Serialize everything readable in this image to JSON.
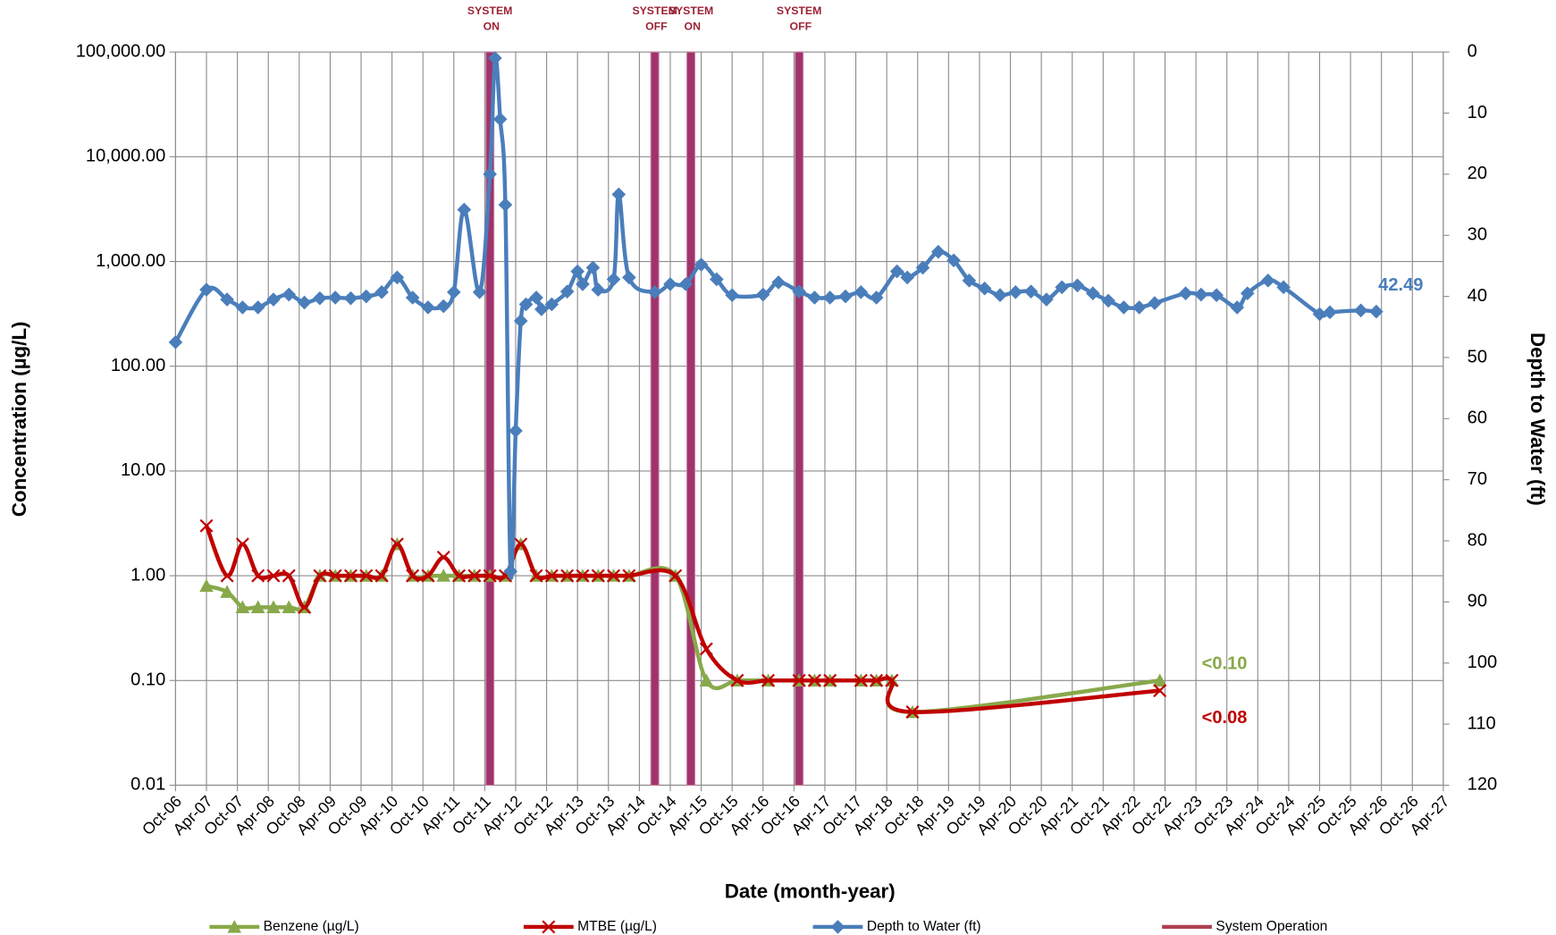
{
  "chart_data": {
    "type": "line",
    "xlabel": "Date (month-year)",
    "ylabel": "Concentration (µg/L)",
    "y2label": "Depth to Water (ft)",
    "log_y": true,
    "grid": true,
    "xlim": [
      "2006-10",
      "2027-04"
    ],
    "xticks": [
      {
        "value": "2006-10",
        "label": "Oct-06"
      },
      {
        "value": "2007-04",
        "label": "Apr-07"
      },
      {
        "value": "2007-10",
        "label": "Oct-07"
      },
      {
        "value": "2008-04",
        "label": "Apr-08"
      },
      {
        "value": "2008-10",
        "label": "Oct-08"
      },
      {
        "value": "2009-04",
        "label": "Apr-09"
      },
      {
        "value": "2009-10",
        "label": "Oct-09"
      },
      {
        "value": "2010-04",
        "label": "Apr-10"
      },
      {
        "value": "2010-10",
        "label": "Oct-10"
      },
      {
        "value": "2011-04",
        "label": "Apr-11"
      },
      {
        "value": "2011-10",
        "label": "Oct-11"
      },
      {
        "value": "2012-04",
        "label": "Apr-12"
      },
      {
        "value": "2012-10",
        "label": "Oct-12"
      },
      {
        "value": "2013-04",
        "label": "Apr-13"
      },
      {
        "value": "2013-10",
        "label": "Oct-13"
      },
      {
        "value": "2014-04",
        "label": "Apr-14"
      },
      {
        "value": "2014-10",
        "label": "Oct-14"
      },
      {
        "value": "2015-04",
        "label": "Apr-15"
      },
      {
        "value": "2015-10",
        "label": "Oct-15"
      },
      {
        "value": "2016-04",
        "label": "Apr-16"
      },
      {
        "value": "2016-10",
        "label": "Oct-16"
      },
      {
        "value": "2017-04",
        "label": "Apr-17"
      },
      {
        "value": "2017-10",
        "label": "Oct-17"
      },
      {
        "value": "2018-04",
        "label": "Apr-18"
      },
      {
        "value": "2018-10",
        "label": "Oct-18"
      },
      {
        "value": "2019-04",
        "label": "Apr-19"
      },
      {
        "value": "2019-10",
        "label": "Oct-19"
      },
      {
        "value": "2020-04",
        "label": "Apr-20"
      },
      {
        "value": "2020-10",
        "label": "Oct-20"
      },
      {
        "value": "2021-04",
        "label": "Apr-21"
      },
      {
        "value": "2021-10",
        "label": "Oct-21"
      },
      {
        "value": "2022-04",
        "label": "Apr-22"
      },
      {
        "value": "2022-10",
        "label": "Oct-22"
      },
      {
        "value": "2023-04",
        "label": "Apr-23"
      },
      {
        "value": "2023-10",
        "label": "Oct-23"
      },
      {
        "value": "2024-04",
        "label": "Apr-24"
      },
      {
        "value": "2024-10",
        "label": "Oct-24"
      },
      {
        "value": "2025-04",
        "label": "Apr-25"
      },
      {
        "value": "2025-10",
        "label": "Oct-25"
      },
      {
        "value": "2026-04",
        "label": "Apr-26"
      },
      {
        "value": "2026-10",
        "label": "Oct-26"
      },
      {
        "value": "2027-04",
        "label": "Apr-27"
      }
    ],
    "ylim": [
      0.01,
      100000
    ],
    "yticks": [
      0.01,
      {
        "value": 0.1,
        "label": "0.10"
      },
      {
        "value": 1,
        "label": "1.00"
      },
      {
        "value": 10,
        "label": "10.00"
      },
      {
        "value": 100,
        "label": "100.00"
      },
      {
        "value": 1000,
        "label": "1,000.00"
      },
      {
        "value": 10000,
        "label": "10,000.00"
      },
      {
        "value": 100000,
        "label": "100,000.00"
      }
    ],
    "y2lim": [
      120,
      0
    ],
    "y2ticks": [
      0,
      10,
      20,
      30,
      40,
      50,
      60,
      70,
      80,
      90,
      100,
      110,
      120
    ],
    "series": [
      {
        "name": "Benzene (µg/L)",
        "color": "#88a94a",
        "marker": "triangle",
        "x": [
          "2007-04",
          "2007-08",
          "2007-11",
          "2008-02",
          "2008-05",
          "2008-08",
          "2008-11",
          "2009-02",
          "2009-05",
          "2009-08",
          "2009-11",
          "2010-02",
          "2010-05",
          "2010-08",
          "2010-11",
          "2011-02",
          "2011-05",
          "2011-08",
          "2011-11",
          "2012-02",
          "2012-05",
          "2012-08",
          "2012-11",
          "2013-02",
          "2013-05",
          "2013-08",
          "2013-11",
          "2014-02",
          "2014-11",
          "2015-05",
          "2015-11",
          "2016-05",
          "2016-11",
          "2017-02",
          "2017-05",
          "2017-11",
          "2018-02",
          "2018-05",
          "2018-09",
          "2022-09"
        ],
        "values": [
          0.8,
          0.7,
          0.5,
          0.5,
          0.5,
          0.5,
          0.5,
          1,
          1,
          1,
          1,
          1,
          2,
          1,
          1,
          1,
          1,
          1,
          1,
          1,
          2,
          1,
          1,
          1,
          1,
          1,
          1,
          1,
          1,
          0.1,
          0.1,
          0.1,
          0.1,
          0.1,
          0.1,
          0.1,
          0.1,
          0.1,
          0.05,
          0.1
        ],
        "value_labels": [
          null,
          null,
          null,
          null,
          null,
          null,
          null,
          null,
          null,
          null,
          null,
          null,
          null,
          null,
          null,
          null,
          null,
          null,
          null,
          null,
          null,
          null,
          null,
          null,
          null,
          null,
          null,
          null,
          null,
          null,
          null,
          null,
          null,
          null,
          null,
          null,
          null,
          null,
          null,
          "<0.10"
        ]
      },
      {
        "name": "MTBE (µg/L)",
        "color": "#c00000",
        "marker": "x",
        "x": [
          "2007-04",
          "2007-08",
          "2007-11",
          "2008-02",
          "2008-05",
          "2008-08",
          "2008-11",
          "2009-02",
          "2009-05",
          "2009-08",
          "2009-11",
          "2010-02",
          "2010-05",
          "2010-08",
          "2010-11",
          "2011-02",
          "2011-05",
          "2011-08",
          "2011-11",
          "2012-02",
          "2012-05",
          "2012-08",
          "2012-11",
          "2013-02",
          "2013-05",
          "2013-08",
          "2013-11",
          "2014-02",
          "2014-11",
          "2015-05",
          "2015-11",
          "2016-05",
          "2016-11",
          "2017-02",
          "2017-05",
          "2017-11",
          "2018-02",
          "2018-05",
          "2018-09",
          "2022-09"
        ],
        "values": [
          3,
          1,
          2,
          1,
          1,
          1,
          0.5,
          1,
          1,
          1,
          1,
          1,
          2,
          1,
          1,
          1.5,
          1,
          1,
          1,
          1,
          2,
          1,
          1,
          1,
          1,
          1,
          1,
          1,
          1,
          0.2,
          0.1,
          0.1,
          0.1,
          0.1,
          0.1,
          0.1,
          0.1,
          0.1,
          0.05,
          0.08
        ],
        "value_labels": [
          null,
          null,
          null,
          null,
          null,
          null,
          null,
          null,
          null,
          null,
          null,
          null,
          null,
          null,
          null,
          null,
          null,
          null,
          null,
          null,
          null,
          null,
          null,
          null,
          null,
          null,
          null,
          null,
          null,
          null,
          null,
          null,
          null,
          null,
          null,
          null,
          null,
          null,
          null,
          "<0.08"
        ]
      },
      {
        "name": "Depth to Water (ft)",
        "color": "#4a7ebb",
        "marker": "diamond",
        "axis": "y2",
        "label_last": true,
        "x": [
          "2006-10",
          "2007-04",
          "2007-08",
          "2007-11",
          "2008-02",
          "2008-05",
          "2008-08",
          "2008-11",
          "2009-02",
          "2009-05",
          "2009-08",
          "2009-11",
          "2010-02",
          "2010-05",
          "2010-08",
          "2010-11",
          "2011-02",
          "2011-04",
          "2011-06",
          "2011-09",
          "2011-11",
          "2011-12",
          "2012-01",
          "2012-02",
          "2012-03",
          "2012-04",
          "2012-05",
          "2012-06",
          "2012-08",
          "2012-09",
          "2012-11",
          "2013-02",
          "2013-04",
          "2013-05",
          "2013-07",
          "2013-08",
          "2013-11",
          "2013-12",
          "2014-02",
          "2014-07",
          "2014-10",
          "2015-01",
          "2015-04",
          "2015-07",
          "2015-10",
          "2016-04",
          "2016-07",
          "2016-11",
          "2017-02",
          "2017-05",
          "2017-08",
          "2017-11",
          "2018-02",
          "2018-06",
          "2018-08",
          "2018-11",
          "2019-02",
          "2019-05",
          "2019-08",
          "2019-11",
          "2020-02",
          "2020-05",
          "2020-08",
          "2020-11",
          "2021-02",
          "2021-05",
          "2021-08",
          "2021-11",
          "2022-02",
          "2022-05",
          "2022-08",
          "2023-02",
          "2023-05",
          "2023-08",
          "2023-12",
          "2024-02",
          "2024-06",
          "2024-09",
          "2025-04",
          "2025-06",
          "2025-12",
          "2026-03"
        ],
        "values": [
          47.5,
          38.9,
          40.5,
          41.8,
          41.8,
          40.5,
          39.7,
          41,
          40.3,
          40.2,
          40.3,
          40,
          39.3,
          36.9,
          40.2,
          41.8,
          41.6,
          39.3,
          25.8,
          39.3,
          20,
          1,
          11,
          25,
          85,
          62,
          44,
          41.3,
          40.2,
          42.1,
          41.3,
          39.2,
          35.9,
          38,
          35.3,
          38.9,
          37.2,
          23.3,
          36.9,
          39.3,
          38,
          38,
          34.8,
          37.2,
          39.8,
          39.7,
          37.7,
          39.2,
          40.2,
          40.2,
          40,
          39.3,
          40.2,
          35.9,
          36.9,
          35.3,
          32.7,
          34.1,
          37.4,
          38.7,
          39.8,
          39.3,
          39.2,
          40.5,
          38.5,
          38.2,
          39.5,
          40.7,
          41.8,
          41.8,
          41.1,
          39.5,
          39.7,
          39.8,
          41.8,
          39.5,
          37.4,
          38.5,
          42.9,
          42.6,
          42.3,
          42.49
        ]
      }
    ],
    "system_operation": {
      "name": "System Operation",
      "color": "#a0336b",
      "events": [
        {
          "x": "2011-11",
          "label": "SYSTEM ON"
        },
        {
          "x": "2014-07",
          "label": "SYSTEM OFF"
        },
        {
          "x": "2015-02",
          "label": "SYSTEM ON"
        },
        {
          "x": "2016-11",
          "label": "SYSTEM OFF"
        }
      ]
    }
  }
}
